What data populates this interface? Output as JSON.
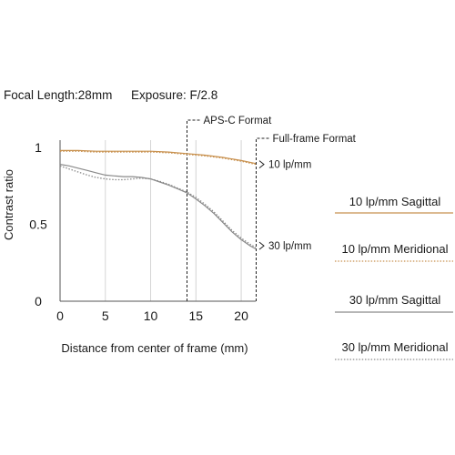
{
  "header": {
    "focal_length": "Focal Length:28mm",
    "exposure": "Exposure: F/2.8"
  },
  "chart_data": {
    "type": "line",
    "xlabel": "Distance from center of frame (mm)",
    "ylabel": "Contrast ratio",
    "xlim": [
      0,
      21.6
    ],
    "ylim": [
      0,
      1
    ],
    "x_ticks": [
      "0",
      "5",
      "10",
      "15",
      "20"
    ],
    "x_tick_values": [
      0,
      5,
      10,
      15,
      20
    ],
    "y_ticks": [
      "0",
      "0.5",
      "1"
    ],
    "y_tick_values": [
      0,
      0.5,
      1
    ],
    "grid": "vertical",
    "legend_position": "right",
    "markers": [
      {
        "label": "APS-C Format",
        "x": 14
      },
      {
        "label": "Full-frame Format",
        "x": 21.6
      }
    ],
    "annotations": [
      {
        "label": "10 lp/mm",
        "y": 0.89
      },
      {
        "label": "30 lp/mm",
        "y": 0.36
      }
    ],
    "series": [
      {
        "name": "10 lp/mm Sagittal",
        "color": "#c8914f",
        "dash": "solid",
        "x": [
          0,
          2,
          4,
          6,
          8,
          10,
          12,
          14,
          16,
          18,
          20,
          21.6
        ],
        "y": [
          0.98,
          0.98,
          0.975,
          0.975,
          0.975,
          0.975,
          0.97,
          0.96,
          0.95,
          0.935,
          0.915,
          0.895
        ]
      },
      {
        "name": "10 lp/mm Meridional",
        "color": "#c8914f",
        "dash": "dotted",
        "x": [
          0,
          2,
          4,
          6,
          8,
          10,
          12,
          14,
          16,
          18,
          20,
          21.6
        ],
        "y": [
          0.975,
          0.975,
          0.97,
          0.97,
          0.97,
          0.97,
          0.965,
          0.955,
          0.945,
          0.93,
          0.91,
          0.89
        ]
      },
      {
        "name": "30 lp/mm Sagittal",
        "color": "#8a8a8a",
        "dash": "solid",
        "x": [
          0,
          1,
          2,
          3,
          4,
          5,
          6,
          7,
          8,
          9,
          10,
          11,
          12,
          13,
          14,
          15,
          16,
          17,
          18,
          19,
          20,
          21,
          21.6
        ],
        "y": [
          0.89,
          0.88,
          0.865,
          0.85,
          0.835,
          0.82,
          0.815,
          0.81,
          0.81,
          0.805,
          0.795,
          0.775,
          0.755,
          0.73,
          0.705,
          0.665,
          0.62,
          0.57,
          0.51,
          0.45,
          0.4,
          0.36,
          0.34
        ]
      },
      {
        "name": "30 lp/mm Meridional",
        "color": "#8a8a8a",
        "dash": "dotted",
        "x": [
          0,
          1,
          2,
          3,
          4,
          5,
          6,
          7,
          8,
          9,
          10,
          11,
          12,
          13,
          14,
          15,
          16,
          17,
          18,
          19,
          20,
          21,
          21.6
        ],
        "y": [
          0.88,
          0.86,
          0.84,
          0.82,
          0.805,
          0.795,
          0.79,
          0.79,
          0.795,
          0.8,
          0.795,
          0.78,
          0.76,
          0.735,
          0.71,
          0.675,
          0.63,
          0.58,
          0.52,
          0.46,
          0.41,
          0.37,
          0.35
        ]
      }
    ]
  }
}
